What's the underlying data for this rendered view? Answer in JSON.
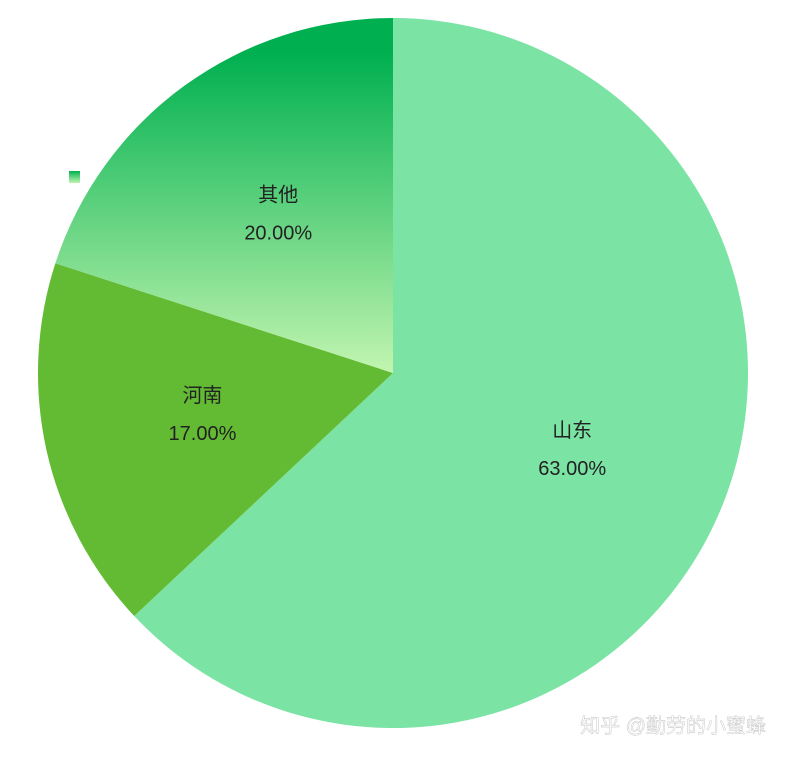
{
  "chart_data": {
    "type": "pie",
    "categories": [
      "山东",
      "河南",
      "其他"
    ],
    "values": [
      63,
      17,
      20
    ],
    "value_labels": [
      "63.00%",
      "17.00%",
      "20.00%"
    ],
    "colors": [
      "#7be3a3",
      "#63bb34",
      "#00b050"
    ],
    "watermark": "知乎 @勤劳的小蜜蜂"
  }
}
